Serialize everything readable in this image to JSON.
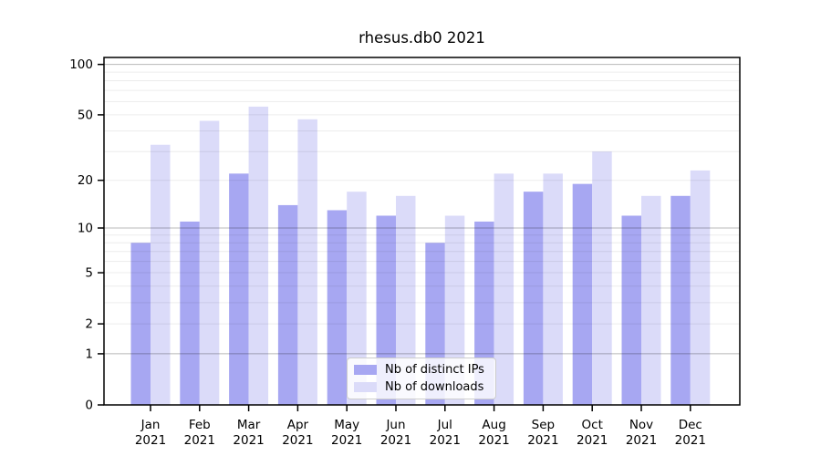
{
  "chart_data": {
    "type": "bar",
    "title": "rhesus.db0 2021",
    "categories": [
      "Jan",
      "Feb",
      "Mar",
      "Apr",
      "May",
      "Jun",
      "Jul",
      "Aug",
      "Sep",
      "Oct",
      "Nov",
      "Dec"
    ],
    "year": "2021",
    "series": [
      {
        "name": "Nb of distinct IPs",
        "color": "#a7a7f2",
        "values": [
          8,
          11,
          22,
          14,
          13,
          12,
          8,
          11,
          17,
          19,
          12,
          16
        ]
      },
      {
        "name": "Nb of downloads",
        "color": "#dbdbf9",
        "values": [
          33,
          46,
          56,
          47,
          17,
          16,
          12,
          22,
          22,
          30,
          16,
          23
        ]
      }
    ],
    "xlabel": "",
    "ylabel": "",
    "yscale": "log1p",
    "ylim": [
      0,
      110
    ],
    "yticks": [
      0,
      1,
      2,
      5,
      10,
      20,
      50,
      100
    ],
    "major_gridlines": [
      1,
      10,
      100
    ],
    "minor_gridlines": [
      2,
      3,
      4,
      5,
      6,
      7,
      8,
      9,
      20,
      30,
      40,
      50,
      60,
      70,
      80,
      90
    ],
    "grid": true,
    "legend_position": "lower center",
    "colors": {
      "bar_distinct_ips": "#a7a7f2",
      "bar_downloads": "#dbdbf9",
      "axis": "#000000",
      "major_gridline": "#b4b4b4",
      "minor_gridline": "#ececec",
      "background": "#ffffff"
    }
  }
}
